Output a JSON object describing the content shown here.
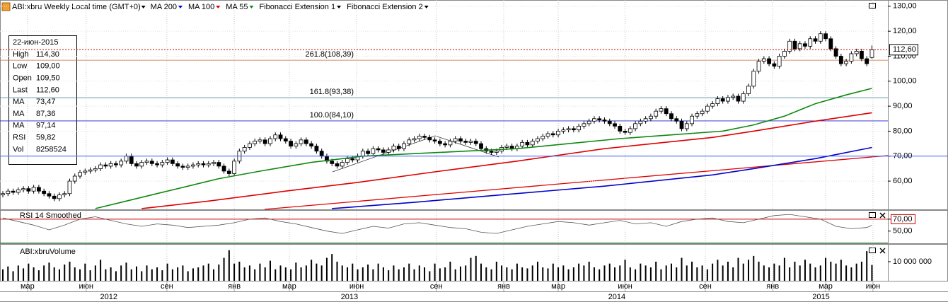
{
  "header": {
    "symbol": "ABI:xbru Weekly Local time (GMT+0)",
    "tools": [
      "Fibonacci Extension 1",
      "Fibonacci Extension 2"
    ]
  },
  "info_box": {
    "date": "22-июн-2015",
    "rows": [
      {
        "label": "High",
        "value": "114,30",
        "color": "#000000"
      },
      {
        "label": "Low",
        "value": "109,00",
        "color": "#000000"
      },
      {
        "label": "Open",
        "value": "109,50",
        "color": "#000000"
      },
      {
        "label": "Last",
        "value": "112,60",
        "color": "#000000"
      },
      {
        "label": "MA",
        "value": "73,47",
        "color": "#0000cc"
      },
      {
        "label": "MA",
        "value": "87,36",
        "color": "#cc0000"
      },
      {
        "label": "MA",
        "value": "97,14",
        "color": "#008000"
      },
      {
        "label": "RSI",
        "value": "59,82",
        "color": "#000000"
      },
      {
        "label": "Vol",
        "value": "8258524",
        "color": "#000000"
      }
    ]
  },
  "chart_data": [
    {
      "type": "candlestick",
      "ylim": [
        48.7,
        132.5
      ],
      "yticks": [
        {
          "value": 60,
          "label": "60,00"
        },
        {
          "value": 70,
          "label": "70,00"
        },
        {
          "value": 80,
          "label": "80,00"
        },
        {
          "value": 90,
          "label": "90,00"
        },
        {
          "value": 100,
          "label": "100,00"
        },
        {
          "value": 110,
          "label": "110,00"
        },
        {
          "value": 120,
          "label": "120,00"
        },
        {
          "value": 130,
          "label": "130,00"
        }
      ],
      "open": [
        54.5,
        55,
        56,
        55.5,
        56.5,
        57,
        56,
        57.5,
        56,
        55,
        54,
        53,
        54.5,
        55,
        60,
        62,
        63.5,
        64,
        64.5,
        65,
        66.5,
        66,
        67,
        66.5,
        68,
        70,
        67,
        66,
        67.5,
        68,
        67,
        66.5,
        67.5,
        68.5,
        67,
        66,
        65.5,
        66,
        66.5,
        67,
        66.5,
        67,
        67.5,
        66,
        64,
        63,
        68,
        72,
        73.5,
        75,
        76,
        76.5,
        75,
        77,
        78.5,
        77,
        76,
        74,
        75,
        76.5,
        75,
        74,
        72,
        70,
        68,
        67,
        66,
        67.5,
        69,
        68.5,
        70,
        72,
        71,
        73,
        72.5,
        71.5,
        72.5,
        74,
        73,
        75,
        76.5,
        77,
        78,
        77.5,
        76.5,
        76,
        75,
        74.5,
        76,
        77,
        76,
        75.5,
        76,
        75,
        73,
        72,
        71.5,
        72,
        73.5,
        74,
        73,
        74,
        75.5,
        74.5,
        76,
        77,
        78,
        79,
        78.5,
        80,
        80.5,
        81,
        80.5,
        82,
        83,
        84,
        85,
        84.5,
        84,
        83,
        82,
        80,
        79.5,
        81,
        83,
        84,
        85,
        86,
        88,
        89,
        87,
        85,
        84,
        81,
        83,
        86,
        87,
        88,
        90,
        91,
        93,
        92,
        93.5,
        94,
        92,
        95,
        98,
        104,
        108,
        109,
        107,
        106,
        110,
        112,
        116,
        113,
        115,
        114,
        117,
        116,
        119,
        117,
        113,
        110,
        107,
        108,
        111,
        112,
        109,
        109.5
      ],
      "high": [
        56,
        57,
        57,
        57.5,
        58,
        58,
        58.5,
        58.5,
        57,
        56,
        55,
        55.5,
        56,
        61,
        63,
        64.5,
        65,
        65.5,
        66,
        67.5,
        67.5,
        68,
        68,
        69,
        71,
        71,
        68,
        68.5,
        69,
        69,
        68,
        68.5,
        69.5,
        69.5,
        68,
        67,
        67,
        67.5,
        68,
        68,
        68,
        68.5,
        68.5,
        67,
        65,
        69,
        73,
        74.5,
        76,
        77,
        77.5,
        77.5,
        78,
        79.5,
        79.5,
        78,
        77,
        76,
        77.5,
        77.5,
        76,
        75,
        73,
        71,
        69,
        68,
        68.5,
        70,
        70,
        71,
        73,
        73,
        74,
        74,
        73.5,
        73.5,
        75,
        75,
        76,
        77.5,
        78,
        79,
        79,
        78.5,
        77.5,
        77,
        76,
        77,
        78,
        78,
        77,
        77,
        77,
        76,
        74,
        73,
        73,
        74.5,
        75,
        75,
        75,
        76.5,
        76.5,
        77,
        78,
        79,
        80,
        80,
        81,
        81.5,
        82,
        82,
        83,
        84,
        85,
        86,
        86,
        85.5,
        85,
        84,
        83,
        81,
        82,
        84,
        85,
        86,
        87,
        89,
        90,
        90,
        88,
        86,
        85,
        84,
        87,
        88,
        89,
        91,
        92,
        94,
        94,
        94.5,
        95,
        95,
        96,
        99,
        105,
        109,
        110,
        110,
        108,
        111,
        113,
        117,
        117,
        116,
        116,
        118,
        118,
        120,
        120,
        118,
        114,
        111,
        109,
        112,
        113,
        113,
        110,
        114.3
      ],
      "low": [
        53.5,
        54,
        54.5,
        54.5,
        55.5,
        55,
        55,
        55,
        54,
        53,
        52,
        52,
        53.5,
        54,
        59,
        61,
        62.5,
        63,
        63.5,
        64,
        65,
        65,
        65.5,
        65.5,
        67,
        66,
        65,
        65,
        66.5,
        66,
        65.5,
        65.5,
        66.5,
        66,
        65,
        64.5,
        64.5,
        65,
        65.5,
        65.5,
        65.5,
        66,
        65,
        63,
        62,
        62,
        67,
        71,
        72.5,
        74,
        75,
        74,
        74,
        76,
        76,
        75,
        73,
        73,
        74,
        74,
        73,
        71,
        69,
        67,
        66,
        65,
        65,
        66.5,
        67.5,
        67.5,
        69,
        70,
        70,
        71.5,
        70.5,
        70.5,
        71.5,
        72,
        72,
        74,
        75.5,
        76,
        76.5,
        75.5,
        75,
        74,
        73.5,
        73.5,
        75,
        75,
        74.5,
        74.5,
        74,
        72,
        71,
        70.5,
        70.5,
        71,
        72.5,
        72,
        72,
        73,
        73.5,
        73.5,
        75,
        76,
        77,
        77.5,
        77.5,
        79,
        79.5,
        79.5,
        79.5,
        81,
        82,
        83,
        83.5,
        83,
        82,
        81,
        79,
        78.5,
        78.5,
        80,
        82,
        83,
        84,
        85,
        87,
        86,
        84,
        83,
        80,
        80,
        82,
        85,
        86,
        87,
        89,
        90,
        91,
        91,
        92.5,
        91,
        91,
        94,
        97,
        103,
        107,
        106,
        105,
        105,
        109,
        111,
        112,
        112,
        113,
        113,
        115,
        115,
        116,
        112,
        109,
        106,
        106,
        107,
        110,
        108,
        106,
        109
      ],
      "close": [
        55,
        56,
        55.5,
        56.5,
        57,
        56,
        57.5,
        56,
        55,
        54,
        53,
        54.5,
        55,
        60,
        62,
        63.5,
        64,
        64.5,
        65,
        66.5,
        66,
        67,
        66.5,
        68,
        70,
        67,
        66,
        67.5,
        68,
        67,
        66.5,
        67.5,
        68.5,
        67,
        66,
        65.5,
        66,
        66.5,
        67,
        66.5,
        67,
        67.5,
        66,
        64,
        63,
        68,
        72,
        73.5,
        75,
        76,
        76.5,
        75,
        77,
        78.5,
        77,
        76,
        74,
        75,
        76.5,
        75,
        74,
        72,
        70,
        68,
        67,
        66,
        67.5,
        69,
        68.5,
        70,
        72,
        71,
        73,
        72.5,
        71.5,
        72.5,
        74,
        73,
        75,
        76.5,
        77,
        78,
        77.5,
        76.5,
        76,
        75,
        74.5,
        76,
        77,
        76,
        75.5,
        76,
        75,
        73,
        72,
        71.5,
        72,
        73.5,
        74,
        73,
        74,
        75.5,
        74.5,
        76,
        77,
        78,
        79,
        78.5,
        80,
        80.5,
        81,
        80.5,
        82,
        83,
        84,
        85,
        84.5,
        84,
        83,
        82,
        80,
        79.5,
        81,
        83,
        84,
        85,
        86,
        88,
        89,
        87,
        85,
        84,
        81,
        83,
        86,
        87,
        88,
        90,
        91,
        93,
        92,
        93.5,
        94,
        92,
        95,
        98,
        104,
        108,
        109,
        107,
        106,
        110,
        112,
        116,
        113,
        115,
        114,
        117,
        116,
        119,
        117,
        113,
        110,
        107,
        108,
        111,
        112,
        109,
        107,
        112.6
      ],
      "up_color": "#ffffff",
      "down_color": "#000000",
      "series": [
        {
          "name": "MA 200",
          "color": "#0000cc",
          "x": [
            64,
            80,
            94,
            117,
            138,
            146,
            158,
            169
          ],
          "values": [
            49,
            51.5,
            54,
            58,
            62.5,
            65,
            69,
            73.47
          ]
        },
        {
          "name": "MA 100",
          "color": "#dd0000",
          "x": [
            27,
            40,
            55,
            69,
            85,
            100,
            117,
            138,
            146,
            158,
            169
          ],
          "values": [
            49,
            52,
            56,
            59.5,
            64,
            68,
            73,
            77.5,
            80,
            84,
            87.36
          ]
        },
        {
          "name": "MA 55",
          "color": "#118811",
          "x": [
            18,
            24,
            30,
            36,
            42,
            50,
            60,
            70,
            80,
            90,
            100,
            110,
            120,
            130,
            140,
            146,
            152,
            158,
            164,
            169
          ],
          "values": [
            49,
            52,
            55,
            58,
            61,
            64,
            67.5,
            70,
            71,
            72,
            73,
            75,
            77,
            78.5,
            80,
            82.5,
            86,
            91,
            94.5,
            97.14
          ]
        }
      ],
      "fib_levels": [
        {
          "label": "261.8(108,39)",
          "value": 108.39,
          "color": "#c0703a"
        },
        {
          "label": "161.8(93,38)",
          "value": 93.38,
          "color": "#4a8a9a"
        },
        {
          "label": "100.0(84,10)",
          "value": 84.1,
          "color": "#2020cc"
        }
      ],
      "hlines": [
        {
          "value": 70,
          "color": "#4060ff"
        }
      ],
      "last_price": {
        "value": 112.6,
        "label": "112,60",
        "color": "#cc0000"
      }
    },
    {
      "type": "line",
      "title": "RSI 14 Smoothed",
      "ylim": [
        29.5,
        84.1
      ],
      "yticks": [
        {
          "value": 70,
          "label": "70,00"
        },
        {
          "value": 50,
          "label": "50,00"
        }
      ],
      "levels": [
        {
          "value": 70,
          "color": "#cc0000"
        },
        {
          "value": 30,
          "color": "#118811"
        }
      ],
      "series": [
        {
          "color": "#555555",
          "x": [
            0,
            3,
            6,
            9,
            12,
            15,
            18,
            21,
            24,
            27,
            30,
            33,
            36,
            39,
            42,
            45,
            48,
            51,
            54,
            57,
            60,
            63,
            66,
            69,
            72,
            75,
            78,
            81,
            84,
            87,
            90,
            93,
            96,
            99,
            102,
            105,
            108,
            111,
            114,
            117,
            120,
            123,
            126,
            129,
            132,
            135,
            138,
            141,
            144,
            147,
            150,
            153,
            156,
            159,
            162,
            165,
            168,
            169
          ],
          "values": [
            72,
            66,
            60,
            52,
            60,
            70,
            74,
            68,
            62,
            58,
            62,
            60,
            56,
            58,
            60,
            64,
            70,
            72,
            66,
            62,
            56,
            50,
            46,
            52,
            58,
            55,
            62,
            64,
            60,
            56,
            54,
            48,
            46,
            52,
            58,
            62,
            66,
            64,
            60,
            64,
            68,
            62,
            64,
            58,
            66,
            70,
            72,
            66,
            64,
            70,
            76,
            78,
            74,
            70,
            58,
            54,
            56,
            59.82
          ]
        }
      ]
    },
    {
      "type": "bar",
      "title": "ABI:xbruVolume",
      "ylim": [
        0,
        18500000
      ],
      "yticks": [
        {
          "value": 10000000,
          "label": "10 000 000"
        }
      ],
      "color": "#000000",
      "values": [
        6000000,
        7500000,
        5000000,
        8000000,
        6500000,
        9000000,
        7000000,
        5500000,
        8000000,
        9500000,
        7000000,
        6000000,
        8500000,
        10000000,
        7000000,
        6000000,
        9000000,
        5500000,
        8000000,
        11000000,
        6000000,
        7000000,
        5000000,
        8000000,
        9500000,
        6000000,
        7500000,
        5000000,
        8000000,
        6000000,
        7000000,
        5500000,
        9000000,
        6000000,
        7000000,
        8000000,
        5000000,
        6500000,
        7000000,
        8000000,
        9000000,
        6000000,
        8500000,
        12000000,
        16000000,
        9000000,
        10000000,
        7000000,
        8000000,
        6000000,
        9000000,
        7000000,
        10500000,
        6000000,
        8000000,
        7000000,
        6000000,
        9500000,
        7000000,
        8000000,
        11000000,
        9000000,
        8000000,
        12000000,
        14000000,
        10000000,
        8000000,
        7000000,
        9000000,
        6000000,
        7000000,
        8500000,
        6000000,
        9000000,
        7000000,
        5500000,
        8000000,
        6000000,
        7000000,
        9000000,
        6000000,
        8000000,
        7000000,
        5000000,
        9000000,
        6500000,
        7000000,
        10000000,
        6000000,
        7500000,
        8000000,
        12000000,
        13000000,
        9000000,
        7000000,
        6000000,
        10000000,
        8000000,
        7000000,
        6000000,
        9000000,
        7000000,
        6500000,
        8000000,
        10000000,
        7000000,
        6500000,
        9000000,
        7000000,
        8000000,
        6000000,
        7000000,
        9000000,
        8000000,
        10000000,
        7000000,
        6000000,
        8000000,
        9000000,
        7000000,
        8000000,
        11000000,
        7000000,
        6000000,
        9000000,
        8000000,
        7000000,
        10000000,
        6000000,
        8000000,
        9000000,
        7000000,
        12000000,
        8000000,
        10000000,
        7000000,
        8000000,
        6000000,
        9000000,
        11000000,
        8000000,
        10000000,
        7000000,
        12000000,
        9000000,
        11000000,
        13000000,
        10000000,
        8000000,
        7000000,
        9000000,
        8000000,
        12000000,
        7000000,
        10000000,
        8000000,
        11000000,
        9000000,
        7000000,
        8000000,
        12000000,
        10000000,
        9000000,
        11000000,
        8000000,
        7000000,
        9000000,
        10000000,
        15500000,
        8258524
      ],
      "xlim": [
        -0.55,
        172.1
      ],
      "xticks": [
        {
          "value": 4.8,
          "label": "мар"
        },
        {
          "value": 16.2,
          "label": "июн"
        },
        {
          "value": 31.9,
          "label": "сен"
        },
        {
          "value": 45,
          "label": "янв"
        },
        {
          "value": 55.7,
          "label": "мар"
        },
        {
          "value": 68.8,
          "label": "июн"
        },
        {
          "value": 84.3,
          "label": "сен"
        },
        {
          "value": 97.4,
          "label": "янв"
        },
        {
          "value": 108,
          "label": "мар"
        },
        {
          "value": 121,
          "label": "июн"
        },
        {
          "value": 136.6,
          "label": "сен"
        },
        {
          "value": 149.7,
          "label": "янв"
        },
        {
          "value": 160,
          "label": "мар"
        },
        {
          "value": 169.2,
          "label": "июн"
        }
      ],
      "year_ticks": [
        {
          "value": 20.6,
          "label": "2012"
        },
        {
          "value": 67.4,
          "label": "2013"
        },
        {
          "value": 119.4,
          "label": "2014"
        },
        {
          "value": 159.1,
          "label": "2015"
        }
      ]
    }
  ]
}
